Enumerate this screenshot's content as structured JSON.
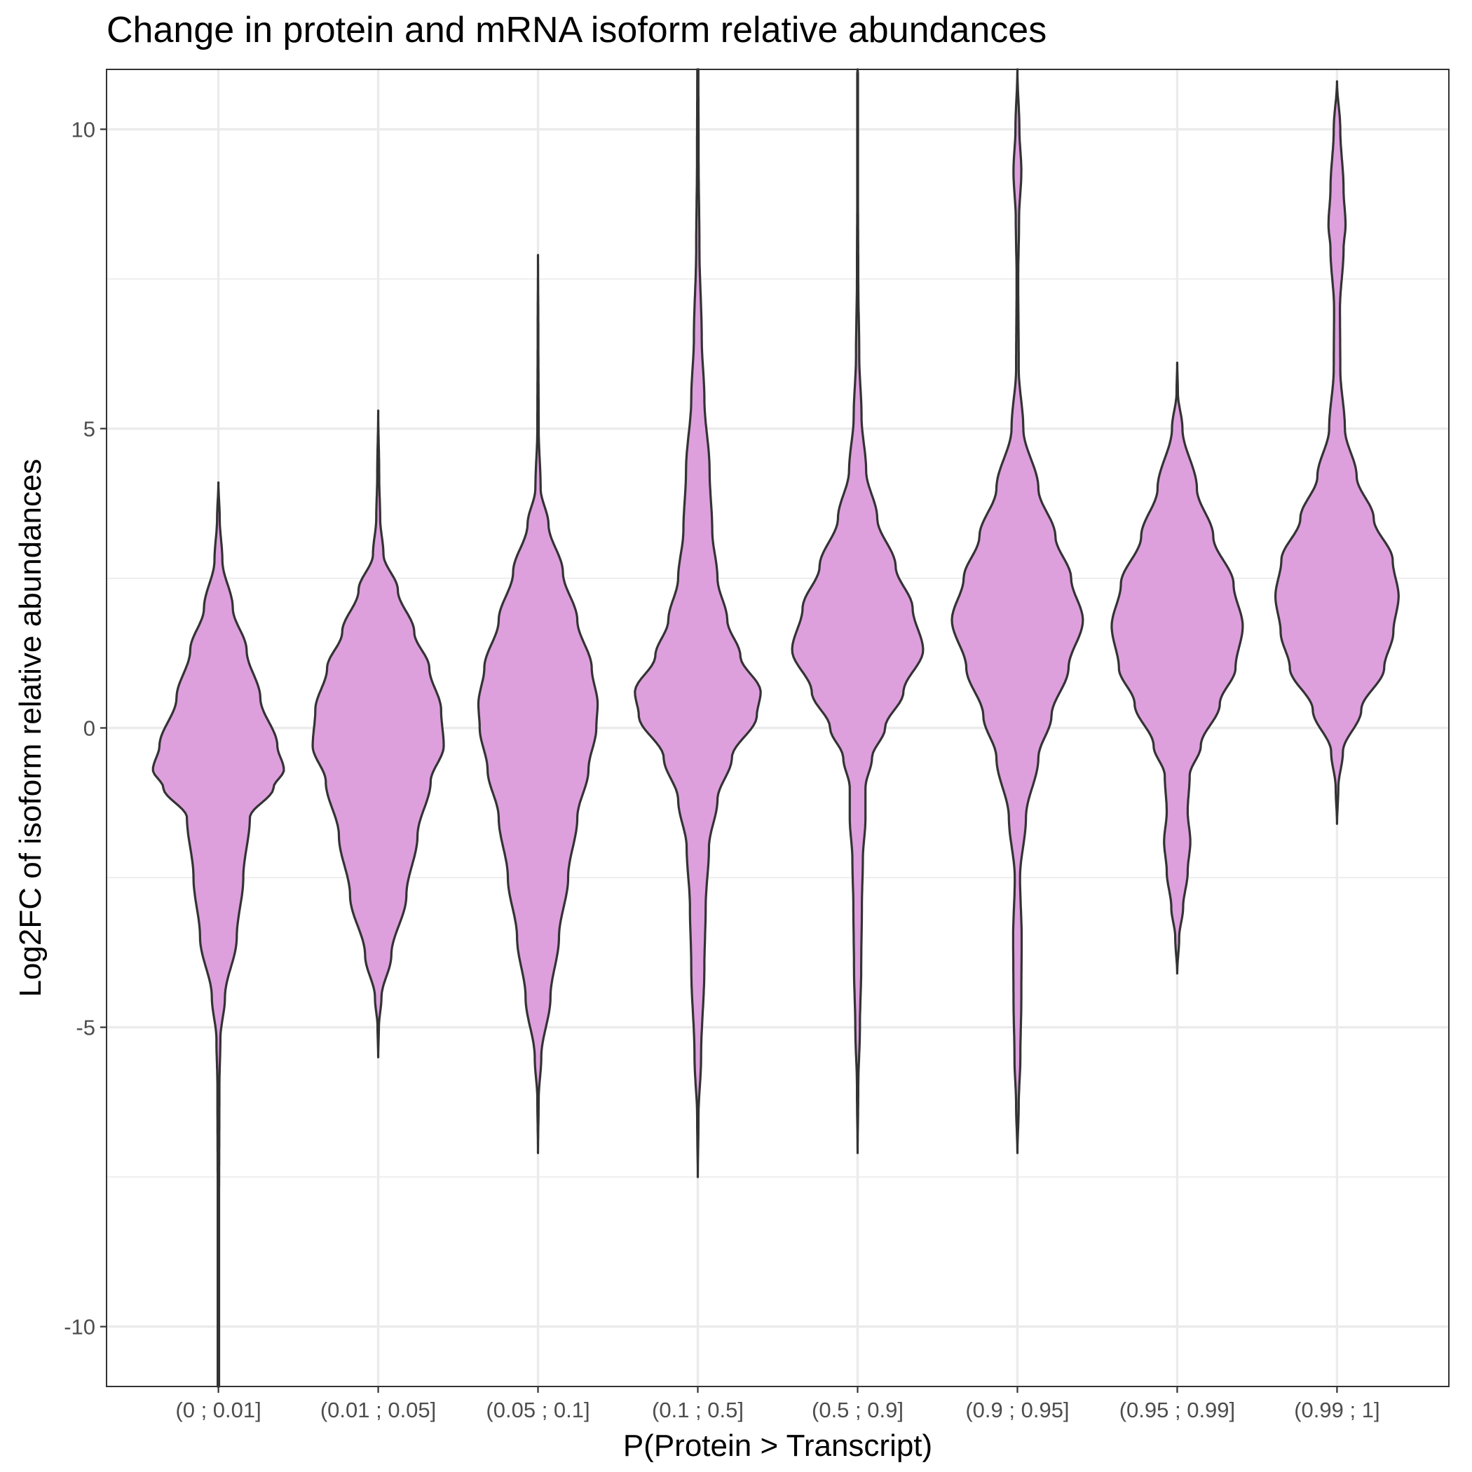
{
  "chart_data": {
    "type": "violin",
    "title": "Change in protein and mRNA isoform relative abundances",
    "xlabel": "P(Protein > Transcript)",
    "ylabel": "Log2FC of isoform relative abundances",
    "categories": [
      "(0 ; 0.01]",
      "(0.01 ; 0.05]",
      "(0.05 ; 0.1]",
      "(0.1 ; 0.5]",
      "(0.5 ; 0.9]",
      "(0.9 ; 0.95]",
      "(0.95 ; 0.99]",
      "(0.99 ; 1]"
    ],
    "ylim": [
      -11,
      11
    ],
    "yticks": [
      -10,
      -5,
      0,
      5,
      10
    ],
    "ytick_labels": [
      "-10",
      "-5",
      "0",
      "5",
      "10"
    ],
    "grid": true,
    "fill_color": "#dda0dd",
    "line_color": "#333333",
    "violins": [
      {
        "category": "(0 ; 0.01]",
        "min": -11,
        "max": 4.1,
        "profile": [
          [
            -11,
            0.01
          ],
          [
            -8,
            0.01
          ],
          [
            -6,
            0.015
          ],
          [
            -5.2,
            0.03
          ],
          [
            -4.5,
            0.1
          ],
          [
            -3.5,
            0.28
          ],
          [
            -2.5,
            0.38
          ],
          [
            -1.5,
            0.48
          ],
          [
            -1,
            0.84
          ],
          [
            -0.7,
            1.0
          ],
          [
            -0.3,
            0.9
          ],
          [
            0.5,
            0.64
          ],
          [
            1.3,
            0.43
          ],
          [
            2.0,
            0.22
          ],
          [
            2.8,
            0.06
          ],
          [
            3.5,
            0.02
          ],
          [
            4.1,
            0
          ]
        ]
      },
      {
        "category": "(0.01 ; 0.05]",
        "min": -5.5,
        "max": 5.3,
        "profile": [
          [
            -5.5,
            0
          ],
          [
            -5.0,
            0.01
          ],
          [
            -4.5,
            0.05
          ],
          [
            -3.8,
            0.2
          ],
          [
            -2.8,
            0.43
          ],
          [
            -1.8,
            0.6
          ],
          [
            -0.9,
            0.8
          ],
          [
            -0.3,
            1.0
          ],
          [
            0.3,
            0.96
          ],
          [
            1.0,
            0.78
          ],
          [
            1.6,
            0.55
          ],
          [
            2.3,
            0.3
          ],
          [
            2.9,
            0.08
          ],
          [
            3.5,
            0.03
          ],
          [
            4.2,
            0.015
          ],
          [
            5.3,
            0
          ]
        ]
      },
      {
        "category": "(0.05 ; 0.1]",
        "min": -7.1,
        "max": 7.9,
        "profile": [
          [
            -7.1,
            0
          ],
          [
            -6.2,
            0.01
          ],
          [
            -5.5,
            0.05
          ],
          [
            -4.5,
            0.19
          ],
          [
            -3.5,
            0.32
          ],
          [
            -2.5,
            0.46
          ],
          [
            -1.5,
            0.6
          ],
          [
            -0.7,
            0.77
          ],
          [
            0.0,
            0.89
          ],
          [
            0.4,
            0.91
          ],
          [
            1.0,
            0.82
          ],
          [
            1.8,
            0.6
          ],
          [
            2.6,
            0.38
          ],
          [
            3.4,
            0.16
          ],
          [
            4.0,
            0.04
          ],
          [
            5.0,
            0.01
          ],
          [
            6.5,
            0.005
          ],
          [
            7.9,
            0
          ]
        ]
      },
      {
        "category": "(0.1 ; 0.5]",
        "min": -7.5,
        "max": 11,
        "profile": [
          [
            -7.5,
            0
          ],
          [
            -6.5,
            0.01
          ],
          [
            -5.5,
            0.05
          ],
          [
            -4,
            0.1
          ],
          [
            -3,
            0.12
          ],
          [
            -2,
            0.17
          ],
          [
            -1.2,
            0.3
          ],
          [
            -0.5,
            0.52
          ],
          [
            0.2,
            0.9
          ],
          [
            0.6,
            0.96
          ],
          [
            1.2,
            0.65
          ],
          [
            1.8,
            0.45
          ],
          [
            2.5,
            0.3
          ],
          [
            3.3,
            0.22
          ],
          [
            4.3,
            0.18
          ],
          [
            5.5,
            0.1
          ],
          [
            6.5,
            0.06
          ],
          [
            8,
            0.025
          ],
          [
            9.5,
            0.012
          ],
          [
            11,
            0.008
          ]
        ]
      },
      {
        "category": "(0.5 ; 0.9]",
        "min": -7.1,
        "max": 11,
        "profile": [
          [
            -7.1,
            0
          ],
          [
            -6,
            0.01
          ],
          [
            -5,
            0.035
          ],
          [
            -4,
            0.055
          ],
          [
            -3,
            0.065
          ],
          [
            -2.2,
            0.08
          ],
          [
            -1.5,
            0.12
          ],
          [
            -1.0,
            0.12
          ],
          [
            -0.5,
            0.22
          ],
          [
            0,
            0.42
          ],
          [
            0.6,
            0.7
          ],
          [
            1.3,
            1.0
          ],
          [
            2.0,
            0.84
          ],
          [
            2.7,
            0.58
          ],
          [
            3.5,
            0.3
          ],
          [
            4.3,
            0.13
          ],
          [
            5.2,
            0.06
          ],
          [
            6.2,
            0.025
          ],
          [
            7.5,
            0.01
          ],
          [
            9,
            0.005
          ],
          [
            11,
            0.005
          ]
        ]
      },
      {
        "category": "(0.9 ; 0.95]",
        "min": -7.1,
        "max": 11,
        "profile": [
          [
            -7.1,
            0
          ],
          [
            -6.3,
            0.02
          ],
          [
            -5.5,
            0.045
          ],
          [
            -4.5,
            0.06
          ],
          [
            -3.5,
            0.065
          ],
          [
            -2.5,
            0.04
          ],
          [
            -1.5,
            0.13
          ],
          [
            -0.5,
            0.32
          ],
          [
            0.2,
            0.52
          ],
          [
            1.0,
            0.78
          ],
          [
            1.8,
            1.0
          ],
          [
            2.5,
            0.82
          ],
          [
            3.2,
            0.58
          ],
          [
            4.0,
            0.32
          ],
          [
            5.0,
            0.09
          ],
          [
            6.0,
            0.02
          ],
          [
            7.5,
            0.012
          ],
          [
            8.5,
            0.025
          ],
          [
            9.3,
            0.06
          ],
          [
            10.0,
            0.03
          ],
          [
            11,
            0
          ]
        ]
      },
      {
        "category": "(0.95 ; 0.99]",
        "min": -4.1,
        "max": 6.1,
        "profile": [
          [
            -4.1,
            0
          ],
          [
            -3.5,
            0.03
          ],
          [
            -3.0,
            0.09
          ],
          [
            -2.4,
            0.16
          ],
          [
            -1.9,
            0.2
          ],
          [
            -1.4,
            0.16
          ],
          [
            -0.8,
            0.19
          ],
          [
            -0.3,
            0.36
          ],
          [
            0.4,
            0.65
          ],
          [
            1.0,
            0.89
          ],
          [
            1.7,
            1.0
          ],
          [
            2.4,
            0.86
          ],
          [
            3.2,
            0.55
          ],
          [
            4.0,
            0.3
          ],
          [
            5.0,
            0.08
          ],
          [
            5.6,
            0.01
          ],
          [
            6.1,
            0
          ]
        ]
      },
      {
        "category": "(0.99 ; 1]",
        "min": -1.6,
        "max": 10.8,
        "profile": [
          [
            -1.6,
            0
          ],
          [
            -1,
            0.02
          ],
          [
            -0.4,
            0.09
          ],
          [
            0.3,
            0.37
          ],
          [
            1.0,
            0.72
          ],
          [
            1.6,
            0.86
          ],
          [
            2.2,
            0.94
          ],
          [
            2.8,
            0.85
          ],
          [
            3.5,
            0.56
          ],
          [
            4.2,
            0.3
          ],
          [
            5,
            0.12
          ],
          [
            6,
            0.05
          ],
          [
            7,
            0.045
          ],
          [
            8,
            0.1
          ],
          [
            8.4,
            0.13
          ],
          [
            9.0,
            0.1
          ],
          [
            10,
            0.05
          ],
          [
            10.8,
            0
          ]
        ]
      }
    ]
  }
}
